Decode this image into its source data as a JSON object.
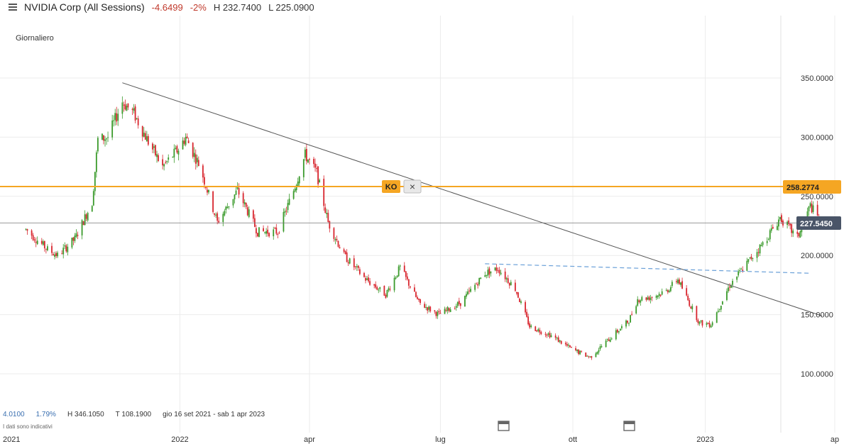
{
  "header": {
    "title": "NVIDIA Corp (All Sessions)",
    "change": "-4.6499",
    "change_pct": "-2%",
    "high": "H 232.7400",
    "low": "L 225.0900"
  },
  "interval_label": "Giornaliero",
  "stats": {
    "value1": "4.0100",
    "value2": "1.79%",
    "high": "H 346.1050",
    "low": "T 108.1900",
    "range": "gio 16 set 2021 - sab 1 apr 2023"
  },
  "note": "I dati sono indicativi",
  "ko_label": "KO",
  "close_glyph": "×",
  "colors": {
    "up": "#3a9a2b",
    "down": "#d8262e",
    "ko_line": "#f5a623",
    "trend": "#555555",
    "dashed": "#6aa0d8",
    "last_price_bg": "#4a5568"
  },
  "chart_data": {
    "type": "candlestick",
    "ylim": [
      70,
      375
    ],
    "y_ticks": [
      "350.0000",
      "300.0000",
      "250.0000",
      "200.0000",
      "150.0000",
      "100.0000"
    ],
    "x_ticks": [
      "2021",
      "2022",
      "apr",
      "lug",
      "ott",
      "2023",
      "ap"
    ],
    "ko_level": 258.2774,
    "ko_label_value": "258.2774",
    "last_price": 227.545,
    "last_price_label": "227.5450",
    "path": [
      {
        "d": "2021-09-16",
        "v": 222
      },
      {
        "d": "2021-10-01",
        "v": 205
      },
      {
        "d": "2021-10-08",
        "v": 200
      },
      {
        "d": "2021-10-20",
        "v": 214
      },
      {
        "d": "2021-11-01",
        "v": 245
      },
      {
        "d": "2021-11-05",
        "v": 298
      },
      {
        "d": "2021-11-12",
        "v": 300
      },
      {
        "d": "2021-11-22",
        "v": 330
      },
      {
        "d": "2021-11-30",
        "v": 320
      },
      {
        "d": "2021-12-10",
        "v": 296
      },
      {
        "d": "2021-12-20",
        "v": 275
      },
      {
        "d": "2021-12-31",
        "v": 290
      },
      {
        "d": "2022-01-05",
        "v": 300
      },
      {
        "d": "2022-01-15",
        "v": 275
      },
      {
        "d": "2022-01-27",
        "v": 228
      },
      {
        "d": "2022-02-10",
        "v": 255
      },
      {
        "d": "2022-02-24",
        "v": 220
      },
      {
        "d": "2022-03-10",
        "v": 220
      },
      {
        "d": "2022-03-21",
        "v": 255
      },
      {
        "d": "2022-03-29",
        "v": 285
      },
      {
        "d": "2022-04-06",
        "v": 270
      },
      {
        "d": "2022-04-14",
        "v": 228
      },
      {
        "d": "2022-04-25",
        "v": 200
      },
      {
        "d": "2022-05-10",
        "v": 180
      },
      {
        "d": "2022-05-24",
        "v": 167
      },
      {
        "d": "2022-06-03",
        "v": 190
      },
      {
        "d": "2022-06-16",
        "v": 160
      },
      {
        "d": "2022-06-30",
        "v": 150
      },
      {
        "d": "2022-07-15",
        "v": 160
      },
      {
        "d": "2022-08-01",
        "v": 185
      },
      {
        "d": "2022-08-10",
        "v": 189
      },
      {
        "d": "2022-08-22",
        "v": 172
      },
      {
        "d": "2022-09-01",
        "v": 140
      },
      {
        "d": "2022-09-15",
        "v": 133
      },
      {
        "d": "2022-09-30",
        "v": 121
      },
      {
        "d": "2022-10-13",
        "v": 114
      },
      {
        "d": "2022-10-25",
        "v": 128
      },
      {
        "d": "2022-11-09",
        "v": 145
      },
      {
        "d": "2022-11-15",
        "v": 163
      },
      {
        "d": "2022-11-25",
        "v": 165
      },
      {
        "d": "2022-12-05",
        "v": 170
      },
      {
        "d": "2022-12-13",
        "v": 180
      },
      {
        "d": "2022-12-20",
        "v": 162
      },
      {
        "d": "2022-12-28",
        "v": 143
      },
      {
        "d": "2023-01-05",
        "v": 142
      },
      {
        "d": "2023-01-18",
        "v": 175
      },
      {
        "d": "2023-01-31",
        "v": 195
      },
      {
        "d": "2023-02-10",
        "v": 210
      },
      {
        "d": "2023-02-22",
        "v": 232
      },
      {
        "d": "2023-03-06",
        "v": 215
      },
      {
        "d": "2023-03-15",
        "v": 242
      },
      {
        "d": "2023-03-23",
        "v": 227
      }
    ],
    "trendline": [
      {
        "d": "2021-11-22",
        "v": 346
      },
      {
        "d": "2023-03-23",
        "v": 149
      }
    ],
    "dashed_line": [
      {
        "d": "2022-08-01",
        "v": 193
      },
      {
        "d": "2023-04-01",
        "v": 185
      }
    ]
  }
}
